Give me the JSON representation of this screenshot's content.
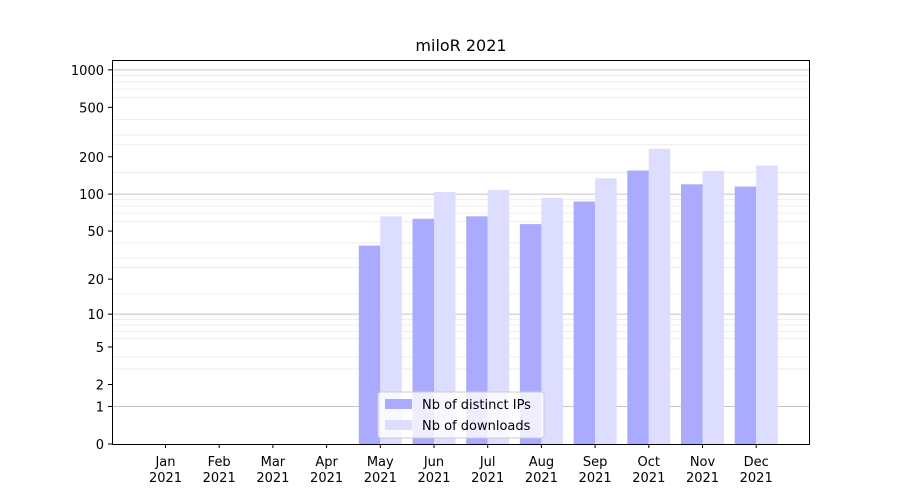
{
  "chart_data": {
    "type": "bar",
    "title": "miloR 2021",
    "xlabel": "",
    "ylabel": "",
    "yscale": "log1p",
    "ylim": [
      0,
      1200
    ],
    "yticks": [
      0,
      1,
      2,
      5,
      10,
      20,
      50,
      100,
      200,
      500,
      1000
    ],
    "grid": "horizontal",
    "legend_position": "bottom-center",
    "categories": [
      {
        "month": "Jan",
        "year": "2021"
      },
      {
        "month": "Feb",
        "year": "2021"
      },
      {
        "month": "Mar",
        "year": "2021"
      },
      {
        "month": "Apr",
        "year": "2021"
      },
      {
        "month": "May",
        "year": "2021"
      },
      {
        "month": "Jun",
        "year": "2021"
      },
      {
        "month": "Jul",
        "year": "2021"
      },
      {
        "month": "Aug",
        "year": "2021"
      },
      {
        "month": "Sep",
        "year": "2021"
      },
      {
        "month": "Oct",
        "year": "2021"
      },
      {
        "month": "Nov",
        "year": "2021"
      },
      {
        "month": "Dec",
        "year": "2021"
      }
    ],
    "series": [
      {
        "name": "Nb of distinct IPs",
        "color": "#aaaaff",
        "values": [
          0,
          0,
          0,
          0,
          38,
          63,
          66,
          57,
          87,
          155,
          120,
          115
        ]
      },
      {
        "name": "Nb of downloads",
        "color": "#ddddff",
        "values": [
          0,
          0,
          0,
          0,
          66,
          104,
          108,
          93,
          134,
          232,
          154,
          170
        ]
      }
    ]
  }
}
